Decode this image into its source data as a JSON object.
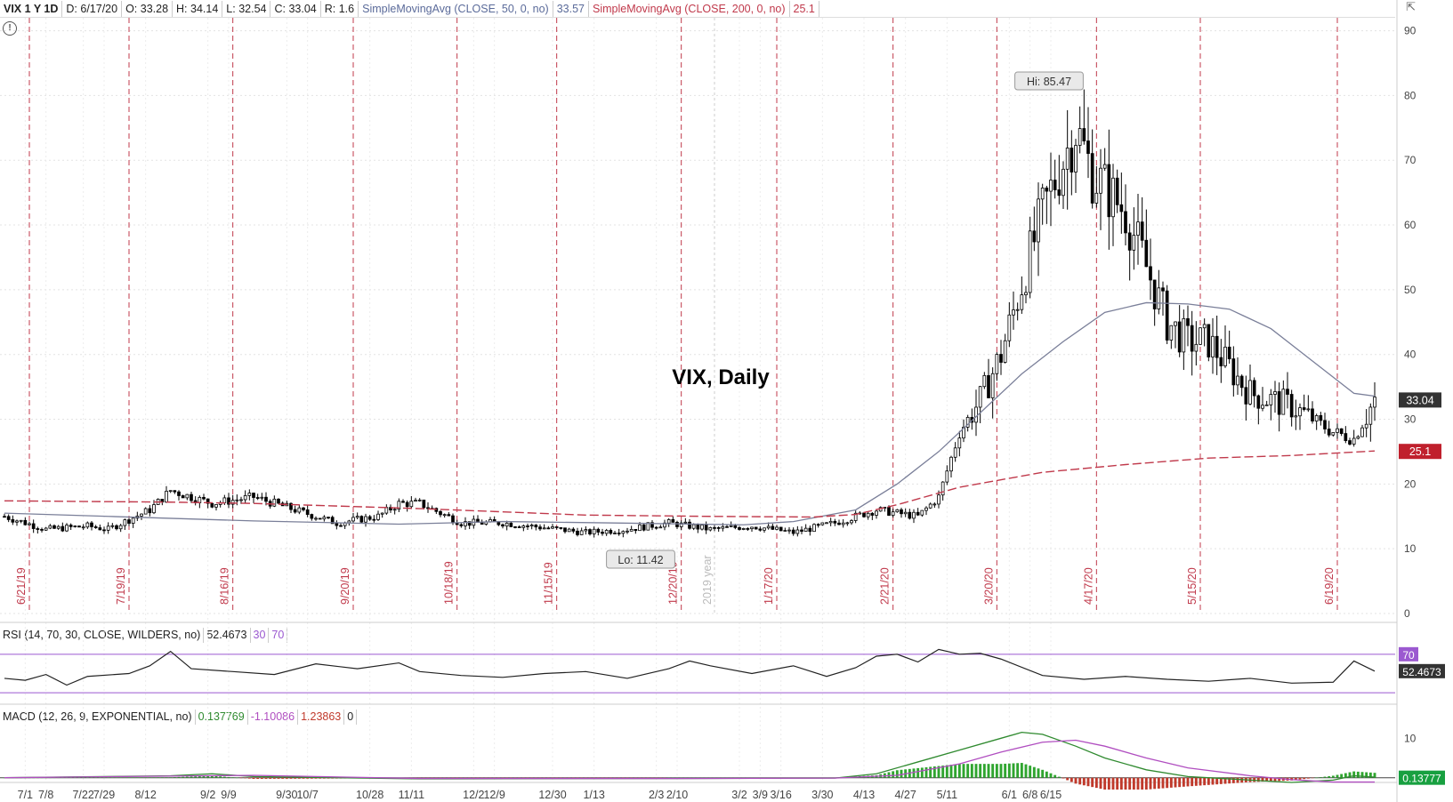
{
  "header": {
    "symbol": "VIX 1 Y 1D",
    "date": "D: 6/17/20",
    "open": "O: 33.28",
    "high": "H: 34.14",
    "low": "L: 32.54",
    "close": "C: 33.04",
    "range": "R: 1.6",
    "ma50_label": "SimpleMovingAvg (CLOSE, 50, 0, no)",
    "ma50_value": "33.57",
    "ma200_label": "SimpleMovingAvg (CLOSE, 200, 0, no)",
    "ma200_value": "25.1"
  },
  "icons": {
    "alert": "alert-circle-icon",
    "corner": "collapse-icon"
  },
  "colors": {
    "up_candle": "#ffffff",
    "down_candle": "#000000",
    "ma50": "#7a7f99",
    "ma200": "#c0394b",
    "rsi": "#222222",
    "rsi_band": "#9b59d0",
    "macd_value": "#2f8a2f",
    "macd_avg": "#b04ec0",
    "hist_pos": "#2fa52f",
    "hist_neg": "#c0392b",
    "price_badge": "#333333",
    "ma200_badge": "#c0202d",
    "macd_badge": "#18a040"
  },
  "chart_data": [
    {
      "type": "candlestick",
      "title": "VIX, Daily",
      "y_ticks": [
        0,
        10,
        20,
        30,
        40,
        50,
        60,
        70,
        80,
        90
      ],
      "ylim": [
        0,
        92
      ],
      "x_tick_labels": [
        "7/1",
        "7/8",
        "7/22",
        "7/29",
        "8/12",
        "9/2",
        "9/9",
        "9/30",
        "10/7",
        "10/28",
        "11/11",
        "12/2",
        "12/9",
        "12/30",
        "1/13",
        "2/3",
        "2/10",
        "3/2",
        "3/9",
        "3/16",
        "3/30",
        "4/13",
        "4/27",
        "5/11",
        "6/1",
        "6/8",
        "6/15"
      ],
      "expiration_dates": [
        "6/21/19",
        "7/19/19",
        "8/16/19",
        "9/20/19",
        "10/18/19",
        "11/15/19",
        "12/20/19",
        "1/17/20",
        "2/21/20",
        "3/20/20",
        "4/17/20",
        "5/15/20",
        "6/19/20"
      ],
      "year_marker": "2019 year",
      "annotations": {
        "high": "Hi: 85.47",
        "low": "Lo: 11.42"
      },
      "last_price": "33.04",
      "ma200_last": "25.1",
      "series": [
        {
          "name": "SimpleMovingAvg (CLOSE, 50, 0, no)",
          "points": [
            [
              0,
              15.5
            ],
            [
              25,
              15.0
            ],
            [
              60,
              14.3
            ],
            [
              95,
              13.8
            ],
            [
              120,
              14.2
            ],
            [
              145,
              14.0
            ],
            [
              178,
              13.7
            ],
            [
              190,
              14.2
            ],
            [
              205,
              16
            ],
            [
              215,
              20
            ],
            [
              225,
              25
            ],
            [
              235,
              31
            ],
            [
              245,
              37
            ],
            [
              255,
              42
            ],
            [
              265,
              46.5
            ],
            [
              275,
              48
            ],
            [
              285,
              47.8
            ],
            [
              295,
              47
            ],
            [
              305,
              44
            ],
            [
              315,
              39
            ],
            [
              325,
              34
            ],
            [
              330,
              33.57
            ]
          ]
        },
        {
          "name": "SimpleMovingAvg (CLOSE, 200, 0, no)",
          "points": [
            [
              0,
              17.4
            ],
            [
              40,
              17.2
            ],
            [
              60,
              17.0
            ],
            [
              100,
              16.2
            ],
            [
              140,
              15.2
            ],
            [
              170,
              15.0
            ],
            [
              195,
              14.9
            ],
            [
              205,
              15.3
            ],
            [
              215,
              16.8
            ],
            [
              230,
              19.5
            ],
            [
              250,
              21.8
            ],
            [
              270,
              23.0
            ],
            [
              290,
              24.0
            ],
            [
              310,
              24.4
            ],
            [
              330,
              25.1
            ]
          ]
        }
      ]
    },
    {
      "type": "line",
      "title": "RSI (14, 70, 30, CLOSE, WILDERS, no)",
      "value": "52.4673",
      "oversold": "30",
      "overbought": "70",
      "ylim": [
        20,
        80
      ],
      "series": [
        {
          "name": "RSI",
          "points": [
            [
              0,
              45
            ],
            [
              5,
              43
            ],
            [
              10,
              49
            ],
            [
              15,
              38
            ],
            [
              20,
              47
            ],
            [
              30,
              50
            ],
            [
              35,
              58
            ],
            [
              40,
              73
            ],
            [
              45,
              55
            ],
            [
              55,
              52
            ],
            [
              65,
              49
            ],
            [
              75,
              60
            ],
            [
              85,
              55
            ],
            [
              95,
              61
            ],
            [
              100,
              52
            ],
            [
              110,
              48
            ],
            [
              120,
              46
            ],
            [
              130,
              50
            ],
            [
              140,
              52
            ],
            [
              150,
              45
            ],
            [
              160,
              55
            ],
            [
              165,
              63
            ],
            [
              170,
              58
            ],
            [
              180,
              50
            ],
            [
              190,
              58
            ],
            [
              198,
              47
            ],
            [
              205,
              56
            ],
            [
              210,
              68
            ],
            [
              215,
              70
            ],
            [
              220,
              62
            ],
            [
              225,
              75
            ],
            [
              230,
              70
            ],
            [
              235,
              71
            ],
            [
              240,
              65
            ],
            [
              250,
              48
            ],
            [
              260,
              44
            ],
            [
              270,
              47
            ],
            [
              280,
              44
            ],
            [
              290,
              42
            ],
            [
              300,
              45
            ],
            [
              310,
              40
            ],
            [
              320,
              41
            ],
            [
              325,
              63
            ],
            [
              330,
              52.4673
            ]
          ]
        }
      ]
    },
    {
      "type": "line",
      "title": "MACD (12, 26, 9, EXPONENTIAL, no)",
      "value": "0.137769",
      "avg": "-1.10086",
      "diff": "1.23863",
      "zero": "0",
      "y_ticks": [
        10
      ],
      "ylim": [
        -3,
        13
      ],
      "series": [
        {
          "name": "Value",
          "points": [
            [
              0,
              0
            ],
            [
              40,
              0.5
            ],
            [
              50,
              1
            ],
            [
              60,
              0.3
            ],
            [
              100,
              -0.3
            ],
            [
              160,
              -0.2
            ],
            [
              200,
              -0.1
            ],
            [
              210,
              1
            ],
            [
              220,
              4
            ],
            [
              230,
              7
            ],
            [
              240,
              10
            ],
            [
              245,
              11.5
            ],
            [
              250,
              11
            ],
            [
              258,
              8
            ],
            [
              265,
              5
            ],
            [
              275,
              2
            ],
            [
              285,
              0.3
            ],
            [
              300,
              -0.6
            ],
            [
              310,
              -1.2
            ],
            [
              320,
              -0.6
            ],
            [
              325,
              0.5
            ],
            [
              330,
              0.138
            ]
          ]
        },
        {
          "name": "Avg",
          "points": [
            [
              0,
              0
            ],
            [
              40,
              0.4
            ],
            [
              60,
              0.6
            ],
            [
              100,
              -0.2
            ],
            [
              160,
              -0.2
            ],
            [
              200,
              -0.1
            ],
            [
              215,
              0.6
            ],
            [
              230,
              3.5
            ],
            [
              240,
              6.5
            ],
            [
              250,
              9
            ],
            [
              258,
              9.5
            ],
            [
              265,
              8
            ],
            [
              275,
              5
            ],
            [
              285,
              2.5
            ],
            [
              300,
              0.5
            ],
            [
              310,
              -0.5
            ],
            [
              320,
              -1.1
            ],
            [
              330,
              -1.1
            ]
          ]
        }
      ]
    }
  ]
}
